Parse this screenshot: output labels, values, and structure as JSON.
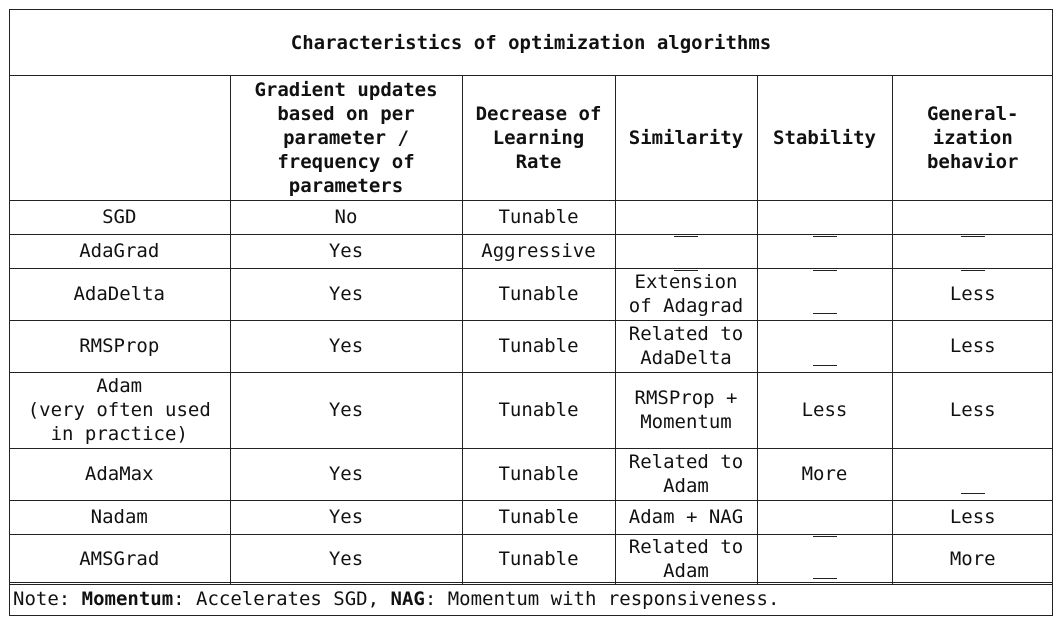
{
  "title": "Characteristics of optimization algorithms",
  "columns": {
    "c1": "",
    "c2": "Gradient updates based on per parameter / frequency of parameters",
    "c3": "Decrease of Learning Rate",
    "c4": "Similarity",
    "c5": "Stability",
    "c6": "General-ization behavior"
  },
  "rows": {
    "sgd": {
      "name": "SGD",
      "grad": "No",
      "lr": "Tunable",
      "sim": "",
      "stab": "",
      "gen": ""
    },
    "adagrad": {
      "name": "AdaGrad",
      "grad": "Yes",
      "lr": "Aggressive",
      "sim": "",
      "stab": "",
      "gen": ""
    },
    "adadelta": {
      "name": "AdaDelta",
      "grad": "Yes",
      "lr": "Tunable",
      "sim": "Extension of Adagrad",
      "stab": "",
      "gen": "Less"
    },
    "rmsprop": {
      "name": "RMSProp",
      "grad": "Yes",
      "lr": "Tunable",
      "sim": "Related to AdaDelta",
      "stab": "",
      "gen": "Less"
    },
    "adam": {
      "name": "Adam",
      "name_sub": "(very often used in practice)",
      "grad": "Yes",
      "lr": "Tunable",
      "sim": "RMSProp + Momentum",
      "stab": "Less",
      "gen": "Less"
    },
    "adamax": {
      "name": "AdaMax",
      "grad": "Yes",
      "lr": "Tunable",
      "sim": "Related to Adam",
      "stab": "More",
      "gen": ""
    },
    "nadam": {
      "name": "Nadam",
      "grad": "Yes",
      "lr": "Tunable",
      "sim": "Adam + NAG",
      "stab": "",
      "gen": "Less"
    },
    "amsgrad": {
      "name": "AMSGrad",
      "grad": "Yes",
      "lr": "Tunable",
      "sim": "Related to Adam",
      "stab": "",
      "gen": "More"
    }
  },
  "note": {
    "prefix": "Note: ",
    "term1": "Momentum",
    "def1": ": Accelerates SGD, ",
    "term2": "NAG",
    "def2": ": Momentum with responsiveness."
  }
}
